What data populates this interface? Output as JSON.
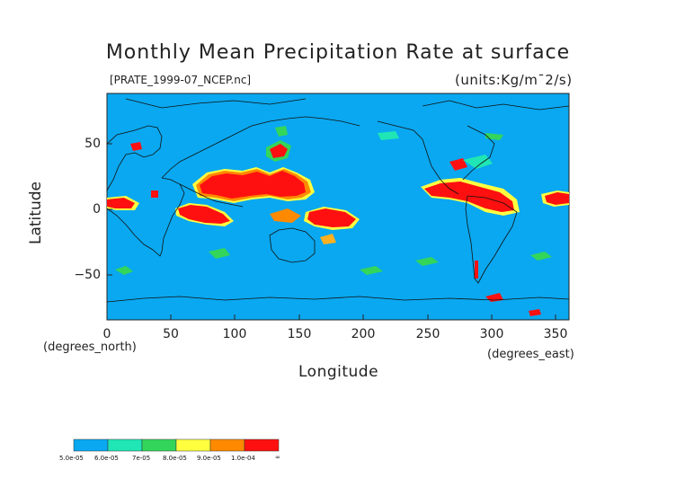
{
  "title": "Monthly Mean Precipitation Rate at surface",
  "file_label": "[PRATE_1999-07_NCEP.nc]",
  "units_label": "(units:Kg/m¯2/s)",
  "y_axis_label": "Latitude",
  "x_axis_label": "Longitude",
  "y_unit_label": "(degrees_north)",
  "x_unit_label": "(degrees_east)",
  "y_ticks": [
    "50",
    "0",
    "−50"
  ],
  "x_ticks": [
    "0",
    "50",
    "100",
    "150",
    "200",
    "250",
    "300",
    "350"
  ],
  "colors": {
    "ocean_base": "#0aa8f0",
    "level1": "#1fe6b4",
    "level2": "#33d65a",
    "level3": "#9aea3a",
    "level4": "#ffff40",
    "level5": "#ffb020",
    "level6": "#ff8a00",
    "level7": "#ff1010"
  },
  "colorbar": {
    "labels": [
      "5.0e-05",
      "6.0e-05",
      "7e-05",
      "8.0e-05",
      "9.0e-05",
      "1.0e-04",
      "∞"
    ]
  },
  "map": {
    "lon_range": [
      0,
      360
    ],
    "lat_range": [
      -90,
      90
    ],
    "yticks_values": [
      50,
      0,
      -50
    ],
    "xticks_values": [
      0,
      50,
      100,
      150,
      200,
      250,
      300,
      350
    ]
  }
}
